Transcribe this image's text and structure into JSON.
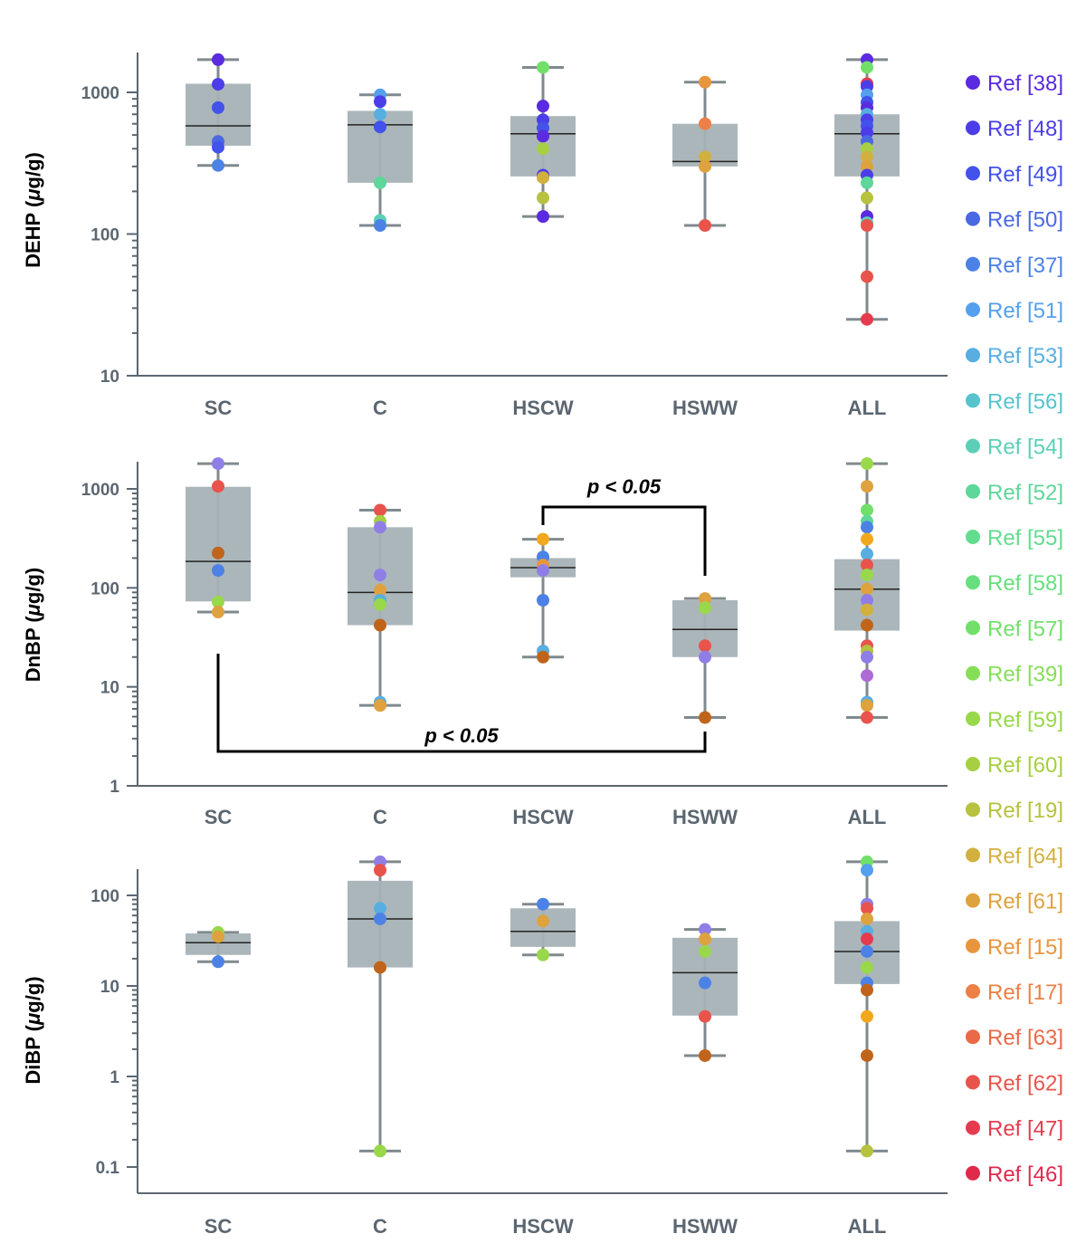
{
  "chart_data": {
    "type": "box",
    "scale": "log",
    "categories": [
      "SC",
      "C",
      "HSCW",
      "HSWW",
      "ALL"
    ],
    "colors": {
      "box_fill": "#a7b2b6",
      "whisker": "#808a8e",
      "axis": "#5b6670"
    },
    "legend": [
      {
        "label": "Ref [38]",
        "color": "#5a2be0"
      },
      {
        "label": "Ref [48]",
        "color": "#4b3ee8"
      },
      {
        "label": "Ref [49]",
        "color": "#4252ea"
      },
      {
        "label": "Ref [50]",
        "color": "#4a68e4"
      },
      {
        "label": "Ref [37]",
        "color": "#4c82e6"
      },
      {
        "label": "Ref [51]",
        "color": "#55a0ec"
      },
      {
        "label": "Ref [53]",
        "color": "#58aee0"
      },
      {
        "label": "Ref [56]",
        "color": "#56c4cc"
      },
      {
        "label": "Ref [54]",
        "color": "#5ccfb6"
      },
      {
        "label": "Ref [52]",
        "color": "#5fd69a"
      },
      {
        "label": "Ref [55]",
        "color": "#62dc8e"
      },
      {
        "label": "Ref [58]",
        "color": "#68df7e"
      },
      {
        "label": "Ref [57]",
        "color": "#72df6a"
      },
      {
        "label": "Ref [39]",
        "color": "#86de58"
      },
      {
        "label": "Ref [59]",
        "color": "#98d84a"
      },
      {
        "label": "Ref [60]",
        "color": "#a6cf44"
      },
      {
        "label": "Ref [19]",
        "color": "#b6c240"
      },
      {
        "label": "Ref [64]",
        "color": "#d2b040"
      },
      {
        "label": "Ref [61]",
        "color": "#dea23e"
      },
      {
        "label": "Ref [15]",
        "color": "#e8953e"
      },
      {
        "label": "Ref [17]",
        "color": "#ec8046"
      },
      {
        "label": "Ref [63]",
        "color": "#ea6a48"
      },
      {
        "label": "Ref [62]",
        "color": "#e8544c"
      },
      {
        "label": "Ref [47]",
        "color": "#e43c4e"
      },
      {
        "label": "Ref [46]",
        "color": "#e02a4c"
      }
    ],
    "panels": [
      {
        "ylabel_prefix": "DEHP (",
        "ylabel_unit_italic": "μ",
        "ylabel_suffix": "g/g)",
        "ylim": [
          10,
          2000
        ],
        "ticks": [
          10,
          100,
          1000
        ],
        "tick_labels": [
          "10",
          "100",
          "1000"
        ],
        "boxes": [
          {
            "q1": 420,
            "median": 580,
            "q3": 1150,
            "min": 305,
            "max": 1700,
            "points": [
              {
                "v": 1700,
                "c": "#5a2be0"
              },
              {
                "v": 1140,
                "c": "#4b3ee8"
              },
              {
                "v": 780,
                "c": "#4252ea"
              },
              {
                "v": 450,
                "c": "#4a68e4"
              },
              {
                "v": 410,
                "c": "#4252ea"
              },
              {
                "v": 305,
                "c": "#4c82e6"
              }
            ]
          },
          {
            "q1": 230,
            "median": 590,
            "q3": 740,
            "min": 115,
            "max": 960,
            "points": [
              {
                "v": 960,
                "c": "#55a0ec"
              },
              {
                "v": 860,
                "c": "#4b3ee8"
              },
              {
                "v": 700,
                "c": "#58aee0"
              },
              {
                "v": 570,
                "c": "#4252ea"
              },
              {
                "v": 230,
                "c": "#5fd69a"
              },
              {
                "v": 125,
                "c": "#5ccfb6"
              },
              {
                "v": 115,
                "c": "#4c82e6"
              }
            ]
          },
          {
            "q1": 255,
            "median": 510,
            "q3": 680,
            "min": 133,
            "max": 1500,
            "points": [
              {
                "v": 1500,
                "c": "#72df6a"
              },
              {
                "v": 800,
                "c": "#5a2be0"
              },
              {
                "v": 640,
                "c": "#4b3ee8"
              },
              {
                "v": 560,
                "c": "#4252ea"
              },
              {
                "v": 490,
                "c": "#5a2be0"
              },
              {
                "v": 400,
                "c": "#a6cf44"
              },
              {
                "v": 260,
                "c": "#4b3ee8"
              },
              {
                "v": 250,
                "c": "#d2b040"
              },
              {
                "v": 180,
                "c": "#b6c240"
              },
              {
                "v": 133,
                "c": "#5a2be0"
              }
            ]
          },
          {
            "q1": 300,
            "median": 325,
            "q3": 600,
            "min": 115,
            "max": 1180,
            "points": [
              {
                "v": 1180,
                "c": "#e8953e"
              },
              {
                "v": 600,
                "c": "#ec8046"
              },
              {
                "v": 350,
                "c": "#d2b040"
              },
              {
                "v": 300,
                "c": "#dea23e"
              },
              {
                "v": 115,
                "c": "#e8544c"
              }
            ]
          },
          {
            "q1": 255,
            "median": 510,
            "q3": 700,
            "min": 25,
            "max": 1700,
            "points": [
              {
                "v": 1700,
                "c": "#5a2be0"
              },
              {
                "v": 1500,
                "c": "#72df6a"
              },
              {
                "v": 1150,
                "c": "#e43c4e"
              },
              {
                "v": 1100,
                "c": "#4b3ee8"
              },
              {
                "v": 960,
                "c": "#55a0ec"
              },
              {
                "v": 850,
                "c": "#4252ea"
              },
              {
                "v": 780,
                "c": "#5a2be0"
              },
              {
                "v": 700,
                "c": "#58aee0"
              },
              {
                "v": 640,
                "c": "#4b3ee8"
              },
              {
                "v": 580,
                "c": "#4252ea"
              },
              {
                "v": 520,
                "c": "#4b3ee8"
              },
              {
                "v": 450,
                "c": "#4a68e4"
              },
              {
                "v": 400,
                "c": "#a6cf44"
              },
              {
                "v": 350,
                "c": "#d2b040"
              },
              {
                "v": 300,
                "c": "#dea23e"
              },
              {
                "v": 260,
                "c": "#4b3ee8"
              },
              {
                "v": 230,
                "c": "#5fd69a"
              },
              {
                "v": 180,
                "c": "#b6c240"
              },
              {
                "v": 133,
                "c": "#5a2be0"
              },
              {
                "v": 120,
                "c": "#5ccfb6"
              },
              {
                "v": 115,
                "c": "#e8544c"
              },
              {
                "v": 50,
                "c": "#e8544c"
              },
              {
                "v": 25,
                "c": "#e43c4e"
              }
            ]
          }
        ],
        "significance": []
      },
      {
        "ylabel_prefix": "DnBP (",
        "ylabel_unit_italic": "μ",
        "ylabel_suffix": "g/g)",
        "ylim": [
          1,
          2000
        ],
        "ticks": [
          1,
          10,
          100,
          1000
        ],
        "tick_labels": [
          "1",
          "10",
          "100",
          "1000"
        ],
        "boxes": [
          {
            "q1": 73,
            "median": 185,
            "q3": 1050,
            "min": 57,
            "max": 1800,
            "points": [
              {
                "v": 1800,
                "c": "#8f7ee6"
              },
              {
                "v": 1060,
                "c": "#e8544c"
              },
              {
                "v": 225,
                "c": "#c0641c"
              },
              {
                "v": 150,
                "c": "#4c82e6"
              },
              {
                "v": 72,
                "c": "#98d84a"
              },
              {
                "v": 57,
                "c": "#dea23e"
              }
            ]
          },
          {
            "q1": 42,
            "median": 90,
            "q3": 410,
            "min": 6.5,
            "max": 610,
            "points": [
              {
                "v": 610,
                "c": "#e8544c"
              },
              {
                "v": 470,
                "c": "#a6cf44"
              },
              {
                "v": 410,
                "c": "#8f7ee6"
              },
              {
                "v": 135,
                "c": "#8f7ee6"
              },
              {
                "v": 95,
                "c": "#dea23e"
              },
              {
                "v": 75,
                "c": "#58aee0"
              },
              {
                "v": 68,
                "c": "#98d84a"
              },
              {
                "v": 42,
                "c": "#c0641c"
              },
              {
                "v": 7,
                "c": "#58aee0"
              },
              {
                "v": 6.5,
                "c": "#dea23e"
              }
            ]
          },
          {
            "q1": 128,
            "median": 160,
            "q3": 200,
            "min": 20,
            "max": 310,
            "points": [
              {
                "v": 310,
                "c": "#f2a81c"
              },
              {
                "v": 205,
                "c": "#4c82e6"
              },
              {
                "v": 170,
                "c": "#e8953e"
              },
              {
                "v": 150,
                "c": "#8f7ee6"
              },
              {
                "v": 75,
                "c": "#4c82e6"
              },
              {
                "v": 23,
                "c": "#58aee0"
              },
              {
                "v": 20,
                "c": "#c0641c"
              }
            ]
          },
          {
            "q1": 20,
            "median": 38,
            "q3": 75,
            "min": 4.9,
            "max": 78,
            "points": [
              {
                "v": 78,
                "c": "#dea23e"
              },
              {
                "v": 63,
                "c": "#98d84a"
              },
              {
                "v": 26,
                "c": "#e8544c"
              },
              {
                "v": 20,
                "c": "#8f7ee6"
              },
              {
                "v": 4.9,
                "c": "#c0641c"
              }
            ]
          },
          {
            "q1": 37,
            "median": 97,
            "q3": 195,
            "min": 4.9,
            "max": 1800,
            "points": [
              {
                "v": 1800,
                "c": "#98d84a"
              },
              {
                "v": 1060,
                "c": "#dea23e"
              },
              {
                "v": 610,
                "c": "#72df6a"
              },
              {
                "v": 470,
                "c": "#5fd69a"
              },
              {
                "v": 410,
                "c": "#4c82e6"
              },
              {
                "v": 310,
                "c": "#f2a81c"
              },
              {
                "v": 220,
                "c": "#58aee0"
              },
              {
                "v": 170,
                "c": "#e8544c"
              },
              {
                "v": 135,
                "c": "#98d84a"
              },
              {
                "v": 97,
                "c": "#dea23e"
              },
              {
                "v": 75,
                "c": "#8f7ee6"
              },
              {
                "v": 60,
                "c": "#d2b040"
              },
              {
                "v": 42,
                "c": "#c0641c"
              },
              {
                "v": 26,
                "c": "#e8544c"
              },
              {
                "v": 23,
                "c": "#b6c240"
              },
              {
                "v": 20,
                "c": "#8f7ee6"
              },
              {
                "v": 13,
                "c": "#b06ad6"
              },
              {
                "v": 7,
                "c": "#58aee0"
              },
              {
                "v": 6.5,
                "c": "#dea23e"
              },
              {
                "v": 4.9,
                "c": "#e8544c"
              }
            ]
          }
        ],
        "significance": [
          {
            "label": "p < 0.05",
            "from": 2,
            "to": 3,
            "placement": "above"
          },
          {
            "label": "p < 0.05",
            "from": 0,
            "to": 3,
            "placement": "below"
          }
        ]
      },
      {
        "ylabel_prefix": "DiBP (",
        "ylabel_unit_italic": "μ",
        "ylabel_suffix": "g/g)",
        "ylim": [
          0.1,
          250
        ],
        "ticks": [
          0.1,
          1,
          10,
          100
        ],
        "tick_labels": [
          "0.1",
          "1",
          "10",
          "100"
        ],
        "boxes": [
          {
            "q1": 22,
            "median": 30,
            "q3": 38,
            "min": 18.5,
            "max": 39,
            "points": [
              {
                "v": 39,
                "c": "#98d84a"
              },
              {
                "v": 35,
                "c": "#dea23e"
              },
              {
                "v": 18.5,
                "c": "#4c82e6"
              }
            ]
          },
          {
            "q1": 16,
            "median": 55,
            "q3": 145,
            "min": 0.15,
            "max": 235,
            "points": [
              {
                "v": 235,
                "c": "#8f7ee6"
              },
              {
                "v": 190,
                "c": "#e8544c"
              },
              {
                "v": 72,
                "c": "#58aee0"
              },
              {
                "v": 55,
                "c": "#4c82e6"
              },
              {
                "v": 16,
                "c": "#c0641c"
              },
              {
                "v": 0.15,
                "c": "#98d84a"
              }
            ]
          },
          {
            "q1": 27,
            "median": 40,
            "q3": 72,
            "min": 22,
            "max": 80,
            "points": [
              {
                "v": 80,
                "c": "#4c82e6"
              },
              {
                "v": 52,
                "c": "#dea23e"
              },
              {
                "v": 22,
                "c": "#98d84a"
              }
            ]
          },
          {
            "q1": 4.7,
            "median": 14,
            "q3": 34,
            "min": 1.7,
            "max": 42,
            "points": [
              {
                "v": 42,
                "c": "#8f7ee6"
              },
              {
                "v": 33,
                "c": "#dea23e"
              },
              {
                "v": 24,
                "c": "#98d84a"
              },
              {
                "v": 10.8,
                "c": "#4c82e6"
              },
              {
                "v": 4.6,
                "c": "#e8544c"
              },
              {
                "v": 1.7,
                "c": "#c0641c"
              }
            ]
          },
          {
            "q1": 10.5,
            "median": 24,
            "q3": 52,
            "min": 0.15,
            "max": 235,
            "points": [
              {
                "v": 235,
                "c": "#72df6a"
              },
              {
                "v": 190,
                "c": "#55a0ec"
              },
              {
                "v": 80,
                "c": "#8f7ee6"
              },
              {
                "v": 72,
                "c": "#e8544c"
              },
              {
                "v": 55,
                "c": "#dea23e"
              },
              {
                "v": 40,
                "c": "#58aee0"
              },
              {
                "v": 33,
                "c": "#e43c4e"
              },
              {
                "v": 24,
                "c": "#4c82e6"
              },
              {
                "v": 16,
                "c": "#98d84a"
              },
              {
                "v": 10.8,
                "c": "#4c82e6"
              },
              {
                "v": 9,
                "c": "#c0641c"
              },
              {
                "v": 4.6,
                "c": "#f2a81c"
              },
              {
                "v": 1.7,
                "c": "#c0641c"
              },
              {
                "v": 0.15,
                "c": "#b6c240"
              }
            ]
          }
        ],
        "significance": []
      }
    ]
  }
}
